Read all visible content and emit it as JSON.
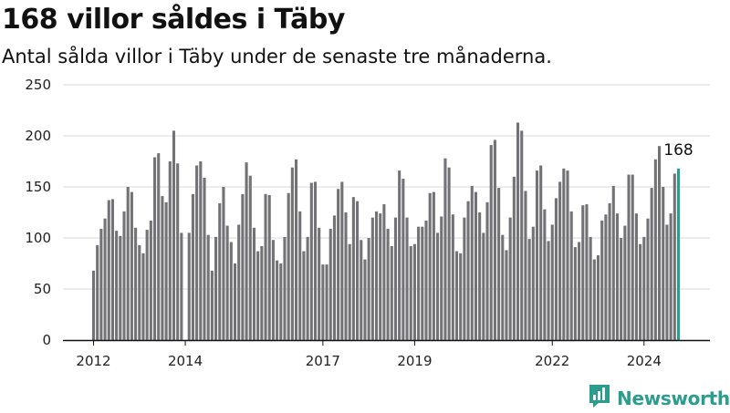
{
  "header": {
    "title": "168 villor såldes i Täby",
    "subtitle": "Antal sålda villor i Täby under de senaste tre månaderna."
  },
  "brand": {
    "name": "Newsworthy",
    "color": "#2a9d8f",
    "icon": "newsworthy-logo-icon"
  },
  "colors": {
    "bar": "#737276",
    "highlight": "#2a9d8f",
    "grid": "#d9d9d9"
  },
  "chart_data": {
    "type": "bar",
    "xlabel": "",
    "ylabel": "",
    "ylim": [
      0,
      250
    ],
    "yticks": [
      0,
      50,
      100,
      150,
      200,
      250
    ],
    "grid": true,
    "x_start": "2012-01",
    "x_end": "2024-09",
    "xticks": [
      {
        "label": "2012",
        "month": "2012-01"
      },
      {
        "label": "2014",
        "month": "2014-01"
      },
      {
        "label": "2017",
        "month": "2017-01"
      },
      {
        "label": "2019",
        "month": "2019-01"
      },
      {
        "label": "2022",
        "month": "2022-01"
      },
      {
        "label": "2024",
        "month": "2024-01"
      }
    ],
    "highlight_label": "168",
    "values": [
      68,
      93,
      109,
      119,
      137,
      138,
      107,
      102,
      126,
      150,
      145,
      110,
      93,
      85,
      108,
      117,
      179,
      183,
      141,
      135,
      175,
      205,
      173,
      105,
      0,
      105,
      143,
      171,
      175,
      159,
      103,
      68,
      101,
      134,
      150,
      112,
      96,
      75,
      113,
      143,
      174,
      161,
      110,
      87,
      92,
      143,
      142,
      98,
      78,
      75,
      101,
      144,
      169,
      177,
      126,
      87,
      101,
      154,
      155,
      110,
      74,
      74,
      109,
      122,
      148,
      155,
      125,
      94,
      140,
      136,
      98,
      79,
      100,
      120,
      126,
      124,
      133,
      109,
      92,
      120,
      166,
      158,
      120,
      92,
      94,
      111,
      111,
      117,
      144,
      145,
      105,
      121,
      178,
      169,
      123,
      87,
      85,
      120,
      136,
      151,
      145,
      125,
      105,
      135,
      191,
      196,
      149,
      103,
      88,
      120,
      160,
      213,
      205,
      146,
      99,
      111,
      166,
      171,
      128,
      97,
      113,
      139,
      155,
      168,
      166,
      126,
      91,
      96,
      132,
      133,
      101,
      79,
      83,
      117,
      123,
      134,
      151,
      124,
      100,
      112,
      162,
      162,
      124,
      94,
      101,
      119,
      149,
      177,
      190,
      150,
      113,
      124,
      163,
      168
    ]
  }
}
